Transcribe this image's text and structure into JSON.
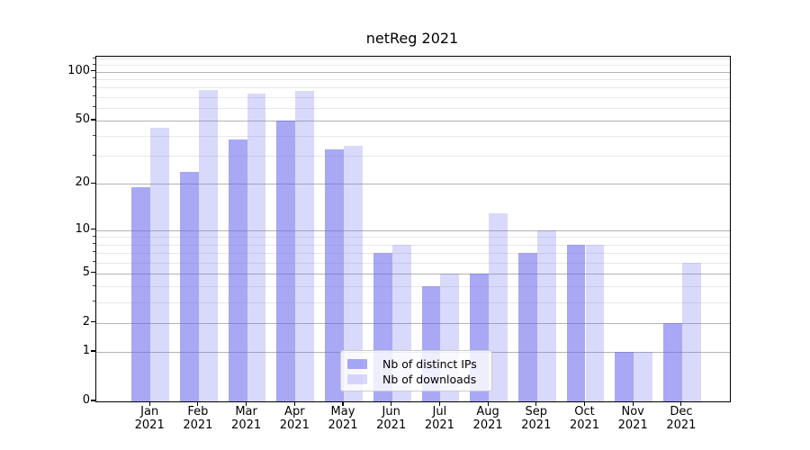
{
  "chart_data": {
    "type": "bar",
    "title": "netReg 2021",
    "categories": [
      "Jan",
      "Feb",
      "Mar",
      "Apr",
      "May",
      "Jun",
      "Jul",
      "Aug",
      "Sep",
      "Oct",
      "Nov",
      "Dec"
    ],
    "year_label": "2021",
    "series": [
      {
        "name": "Nb of distinct IPs",
        "color": "#6666ee",
        "alpha": 0.57,
        "values": [
          19,
          24,
          38,
          50,
          33,
          7,
          4,
          5,
          7,
          8,
          1,
          2
        ]
      },
      {
        "name": "Nb of downloads",
        "color": "#6666ee",
        "alpha": 0.25,
        "values": [
          45,
          77,
          73,
          76,
          35,
          8,
          5,
          13,
          10,
          8,
          1,
          6
        ]
      }
    ],
    "yscale": "log1p",
    "yticks": [
      0,
      1,
      2,
      5,
      10,
      20,
      50,
      100
    ],
    "minor_yticks": [
      3,
      4,
      6,
      7,
      8,
      9,
      30,
      40,
      60,
      70,
      80,
      90,
      110,
      120
    ],
    "ylim": [
      0,
      124
    ],
    "grid": true,
    "legend_position": "lower center",
    "xlabel": "",
    "ylabel": ""
  }
}
